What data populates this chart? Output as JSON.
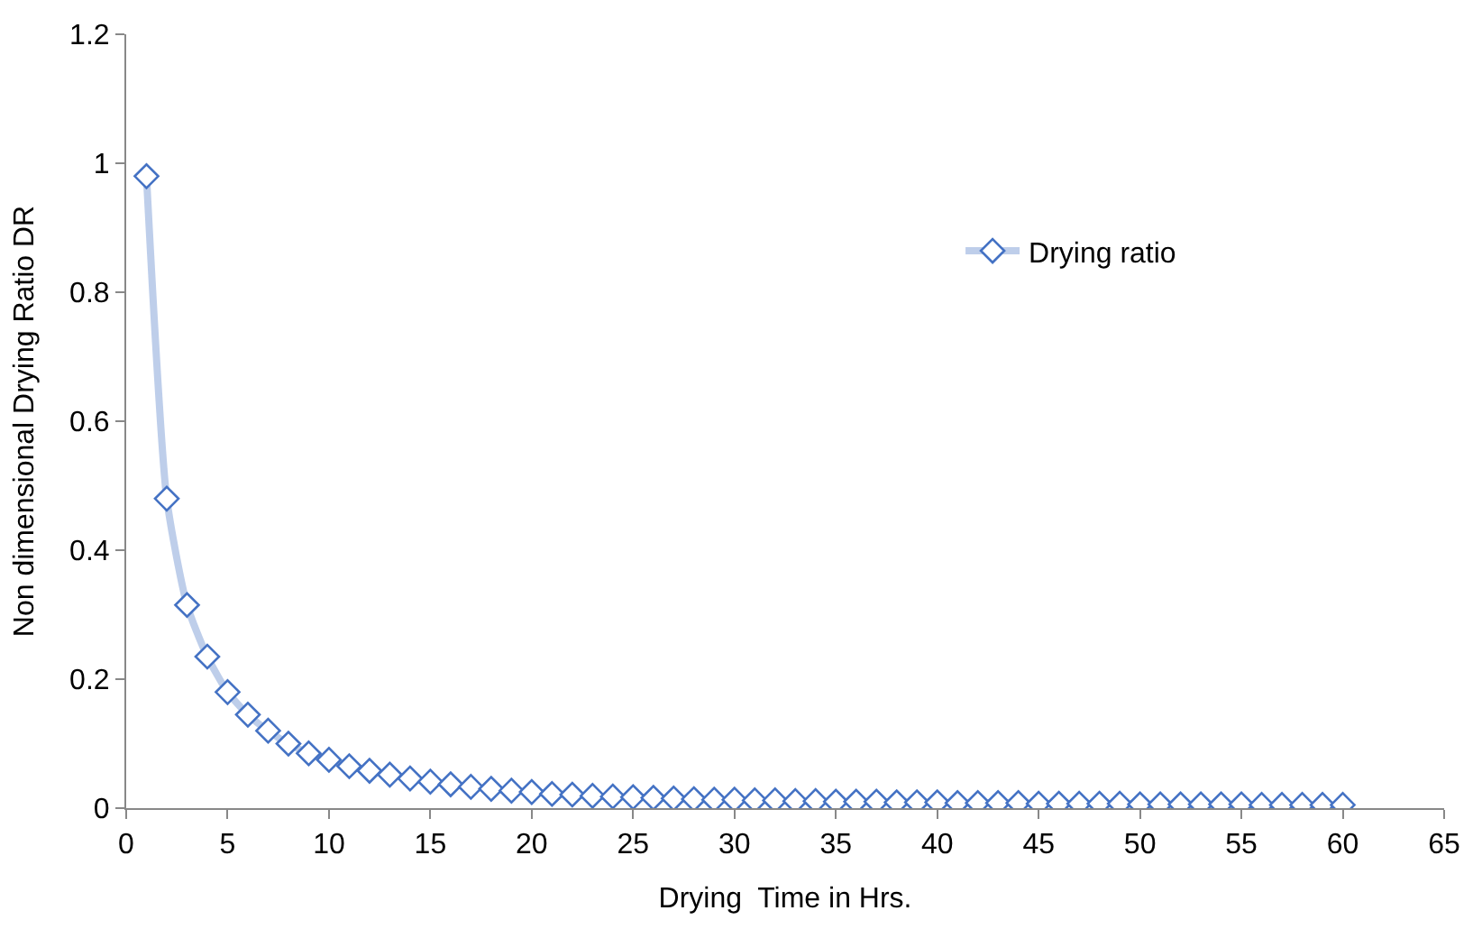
{
  "chart_data": {
    "type": "line",
    "xlabel": "Drying  Time in Hrs.",
    "ylabel": "Non dimensional Drying Ratio DR",
    "x": [
      1,
      2,
      3,
      4,
      5,
      6,
      7,
      8,
      9,
      10,
      11,
      12,
      13,
      14,
      15,
      16,
      17,
      18,
      19,
      20,
      21,
      22,
      23,
      24,
      25,
      26,
      27,
      28,
      29,
      30,
      31,
      32,
      33,
      34,
      35,
      36,
      37,
      38,
      39,
      40,
      41,
      42,
      43,
      44,
      45,
      46,
      47,
      48,
      49,
      50,
      51,
      52,
      53,
      54,
      55,
      56,
      57,
      58,
      59,
      60
    ],
    "series": [
      {
        "name": "Drying ratio",
        "color": "#4472c4",
        "values": [
          0.98,
          0.48,
          0.315,
          0.235,
          0.18,
          0.145,
          0.12,
          0.1,
          0.085,
          0.075,
          0.065,
          0.058,
          0.052,
          0.046,
          0.041,
          0.037,
          0.033,
          0.03,
          0.027,
          0.025,
          0.022,
          0.021,
          0.019,
          0.018,
          0.017,
          0.016,
          0.015,
          0.014,
          0.013,
          0.013,
          0.012,
          0.012,
          0.011,
          0.011,
          0.01,
          0.01,
          0.01,
          0.009,
          0.009,
          0.009,
          0.008,
          0.008,
          0.008,
          0.008,
          0.007,
          0.007,
          0.007,
          0.007,
          0.007,
          0.006,
          0.006,
          0.006,
          0.006,
          0.006,
          0.006,
          0.005,
          0.005,
          0.005,
          0.005,
          0.005
        ]
      }
    ],
    "xlim": [
      0,
      65
    ],
    "xticks": [
      0,
      5,
      10,
      15,
      20,
      25,
      30,
      35,
      40,
      45,
      50,
      55,
      60,
      65
    ],
    "ylim": [
      0,
      1.2
    ],
    "yticks": [
      0,
      0.2,
      0.4,
      0.6,
      0.8,
      1,
      1.2
    ],
    "legend": "right",
    "marker": "diamond",
    "line_style": "solid"
  }
}
